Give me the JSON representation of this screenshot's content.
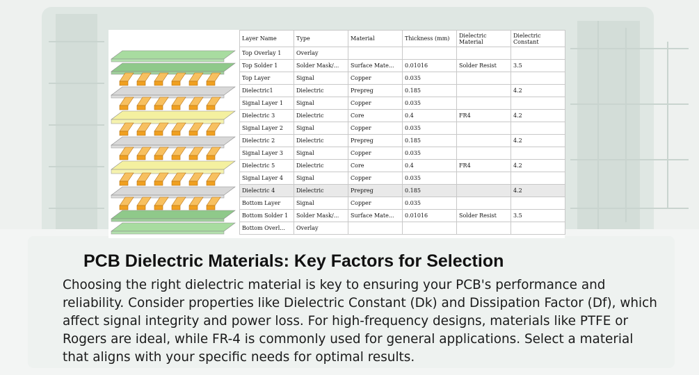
{
  "table": {
    "headers": [
      "Layer Name",
      "Type",
      "Material",
      "Thickness (mm)",
      "Dielectric Material",
      "Dielectric Constant"
    ],
    "rows": [
      [
        "Top Overlay 1",
        "Overlay",
        "",
        "",
        "",
        ""
      ],
      [
        "Top Solder 1",
        "Solder Mask/...",
        "Surface Mate...",
        "0.01016",
        "Solder Resist",
        "3.5"
      ],
      [
        "Top Layer",
        "Signal",
        "Copper",
        "0.035",
        "",
        ""
      ],
      [
        "Dielectric1",
        "Dielectric",
        "Prepreg",
        "0.185",
        "",
        "4.2"
      ],
      [
        "Signal Layer 1",
        "Signal",
        "Copper",
        "0.035",
        "",
        ""
      ],
      [
        "Dielectric 3",
        "Dielectric",
        "Core",
        "0.4",
        "FR4",
        "4.2"
      ],
      [
        "Signal Layer 2",
        "Signal",
        "Copper",
        "0.035",
        "",
        ""
      ],
      [
        "Dielectric 2",
        "Dielectric",
        "Prepreg",
        "0.185",
        "",
        "4.2"
      ],
      [
        "Signal Layer 3",
        "Signal",
        "Copper",
        "0.035",
        "",
        ""
      ],
      [
        "Dielectric 5",
        "Dielectric",
        "Core",
        "0.4",
        "FR4",
        "4.2"
      ],
      [
        "Signal Layer 4",
        "Signal",
        "Copper",
        "0.035",
        "",
        ""
      ],
      [
        "Dielectric 4",
        "Dielectric",
        "Prepreg",
        "0.185",
        "",
        "4.2"
      ],
      [
        "Bottom Layer",
        "Signal",
        "Copper",
        "0.035",
        "",
        ""
      ],
      [
        "Bottom Solder 1",
        "Solder Mask/...",
        "Surface Mate...",
        "0.01016",
        "Solder Resist",
        "3.5"
      ],
      [
        "Bottom Overl...",
        "Overlay",
        "",
        "",
        "",
        ""
      ]
    ],
    "highlighted_row": 11
  },
  "article": {
    "title": "PCB Dielectric Materials: Key Factors for Selection",
    "body": "Choosing the right dielectric material is key to ensuring your PCB's performance and reliability. Consider properties like Dielectric Constant (Dk) and Dissipation Factor (Df), which affect signal integrity and power loss. For high-frequency designs, materials like PTFE or Rogers are ideal, while FR-4 is commonly used for general applications. Select a material that aligns with your specific needs for optimal results."
  },
  "colors": {
    "overlay_green": "#a8dca0",
    "solder_green": "#8fc98a",
    "copper_pad": "#f0a020",
    "dielectric_grey": "#d8d8d8",
    "core_yellow": "#f4f0a0",
    "highlight_row": "#e9e9e9"
  }
}
